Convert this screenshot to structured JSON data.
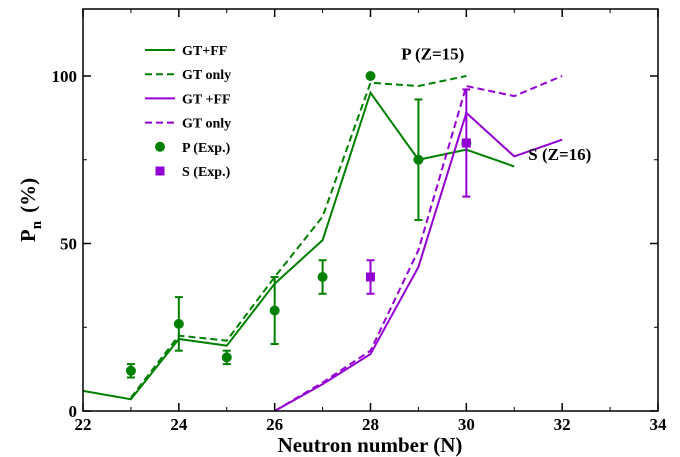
{
  "chart_data": {
    "type": "line",
    "xlabel": "Neutron number (N)",
    "ylabel_main": "P",
    "ylabel_sub": "n",
    "ylabel_unit": "(%)",
    "xlim": [
      22,
      34
    ],
    "ylim": [
      0,
      120
    ],
    "x_ticks": [
      22,
      24,
      26,
      28,
      30,
      32,
      34
    ],
    "y_ticks": [
      0,
      50,
      100
    ],
    "grid": false,
    "legend_position": "top-left",
    "colors": {
      "green": "#008000",
      "purple": "#9400d3"
    },
    "series": [
      {
        "name": "GT+FF",
        "kind": "line",
        "dash": "solid",
        "color": "#008000",
        "points": [
          [
            22,
            6
          ],
          [
            23,
            3.5
          ],
          [
            24,
            21.5
          ],
          [
            25,
            19.5
          ],
          [
            26,
            38
          ],
          [
            27,
            51
          ],
          [
            28,
            95
          ],
          [
            29,
            75
          ],
          [
            30,
            78
          ],
          [
            31,
            73
          ]
        ]
      },
      {
        "name": "GT only",
        "kind": "line",
        "dash": "dashed",
        "color": "#008000",
        "points": [
          [
            23,
            4
          ],
          [
            24,
            22.5
          ],
          [
            25,
            21
          ],
          [
            26,
            40
          ],
          [
            27,
            58
          ],
          [
            28,
            98
          ],
          [
            29,
            97
          ],
          [
            30,
            100
          ]
        ]
      },
      {
        "name": "GT +FF",
        "kind": "line",
        "dash": "solid",
        "color": "#9400d3",
        "points": [
          [
            26,
            0
          ],
          [
            27,
            8
          ],
          [
            28,
            17
          ],
          [
            29,
            43
          ],
          [
            30,
            89
          ],
          [
            31,
            76
          ],
          [
            32,
            81
          ]
        ]
      },
      {
        "name": "GT only",
        "kind": "line",
        "dash": "dashed",
        "color": "#9400d3",
        "points": [
          [
            26,
            0
          ],
          [
            27,
            8.5
          ],
          [
            28,
            18
          ],
          [
            29,
            48
          ],
          [
            30,
            97
          ],
          [
            31,
            94
          ],
          [
            32,
            100
          ]
        ]
      },
      {
        "name": "P (Exp.)",
        "kind": "points",
        "marker": "circle",
        "color": "#008000",
        "points": [
          {
            "x": 23,
            "y": 12,
            "err": 2
          },
          {
            "x": 24,
            "y": 26,
            "err": 8
          },
          {
            "x": 25,
            "y": 16,
            "err": 2
          },
          {
            "x": 26,
            "y": 30,
            "err": 10
          },
          {
            "x": 27,
            "y": 40,
            "err": 5
          },
          {
            "x": 28,
            "y": 100,
            "err": 0
          },
          {
            "x": 29,
            "y": 75,
            "err": 18
          },
          {
            "x": 30,
            "y": 80,
            "err": 0
          }
        ]
      },
      {
        "name": "S (Exp.)",
        "kind": "points",
        "marker": "square",
        "color": "#9400d3",
        "points": [
          {
            "x": 28,
            "y": 40,
            "err": 5
          },
          {
            "x": 30,
            "y": 80,
            "err": 16
          }
        ]
      }
    ],
    "annotations": [
      {
        "text": "P (Z=15)",
        "x": 29.3,
        "y": 105
      },
      {
        "text": "S (Z=16)",
        "x": 31.95,
        "y": 75
      }
    ]
  }
}
